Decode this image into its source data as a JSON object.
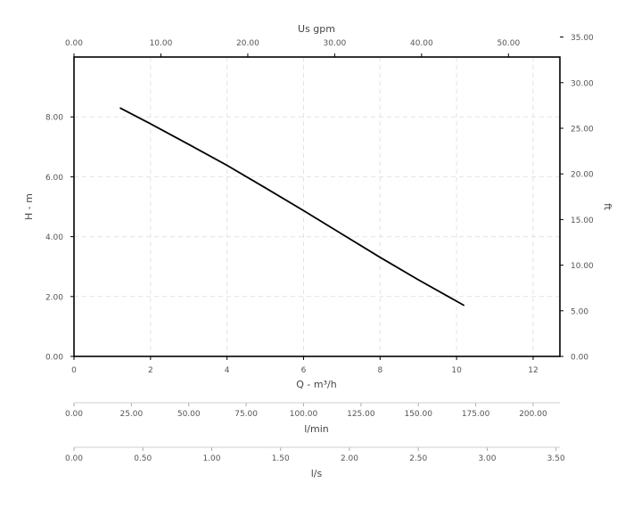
{
  "chart_data": {
    "type": "line",
    "x": [
      1.2,
      2,
      3,
      4,
      5,
      6,
      7,
      8,
      9,
      10.2
    ],
    "y": [
      8.3,
      7.77,
      7.08,
      6.38,
      5.63,
      4.87,
      4.09,
      3.31,
      2.56,
      1.7
    ],
    "xlabel": "Q - m³/h",
    "ylabel": "H - m",
    "xlim": [
      0,
      12.7
    ],
    "ylim": [
      0,
      10
    ],
    "x_ticks": [
      "0",
      "2",
      "4",
      "6",
      "8",
      "10",
      "12"
    ],
    "y_ticks": [
      "0.00",
      "2.00",
      "4.00",
      "6.00",
      "8.00"
    ],
    "top_axis": {
      "label": "Us gpm",
      "ticks": [
        "0.00",
        "10.00",
        "20.00",
        "30.00",
        "40.00",
        "50.00"
      ]
    },
    "right_axis": {
      "label": "ft",
      "ticks": [
        "0.00",
        "5.00",
        "10.00",
        "15.00",
        "20.00",
        "25.00",
        "30.00",
        "35.00"
      ]
    },
    "extra_axes": [
      {
        "label": "l/min",
        "ticks": [
          "0.00",
          "25.00",
          "50.00",
          "75.00",
          "100.00",
          "125.00",
          "150.00",
          "175.00",
          "200.00"
        ]
      },
      {
        "label": "l/s",
        "ticks": [
          "0.00",
          "0.50",
          "1.00",
          "1.50",
          "2.00",
          "2.50",
          "3.00",
          "3.50"
        ]
      }
    ],
    "grid": true,
    "line_color": "#000000"
  }
}
